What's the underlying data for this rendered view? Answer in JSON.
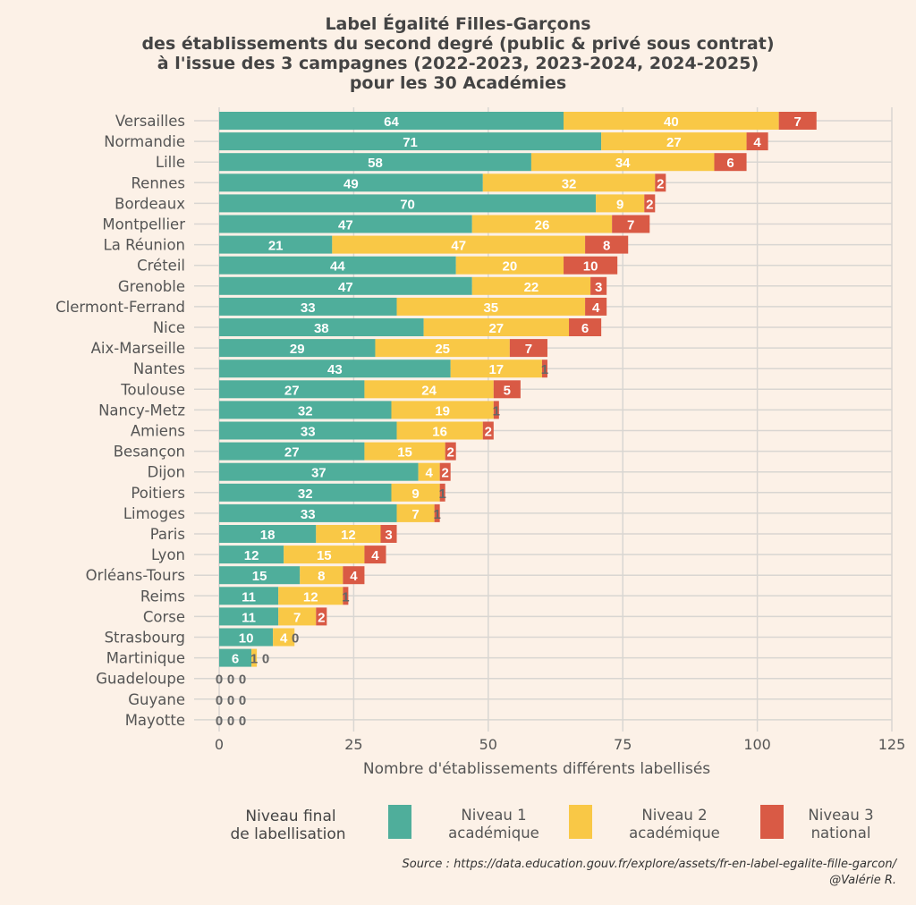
{
  "chart_data": {
    "type": "bar",
    "orientation": "horizontal-stacked",
    "title": [
      "Label Égalité Filles-Garçons",
      "des établissements du second degré (public & privé sous contrat)",
      "à l'issue des 3 campagnes (2022-2023, 2023-2024, 2024-2025)",
      "pour les 30 Académies"
    ],
    "xlabel": "Nombre d'établissements différents labellisés",
    "ylabel": "",
    "xlim": [
      0,
      125
    ],
    "xticks": [
      0,
      25,
      50,
      75,
      100,
      125
    ],
    "grid": true,
    "categories": [
      "Versailles",
      "Normandie",
      "Lille",
      "Rennes",
      "Bordeaux",
      "Montpellier",
      "La Réunion",
      "Créteil",
      "Grenoble",
      "Clermont-Ferrand",
      "Nice",
      "Aix-Marseille",
      "Nantes",
      "Toulouse",
      "Nancy-Metz",
      "Amiens",
      "Besançon",
      "Dijon",
      "Poitiers",
      "Limoges",
      "Paris",
      "Lyon",
      "Orléans-Tours",
      "Reims",
      "Corse",
      "Strasbourg",
      "Martinique",
      "Guadeloupe",
      "Guyane",
      "Mayotte"
    ],
    "series": [
      {
        "name": "Niveau 1 académique",
        "color": "#4fae9b",
        "values": [
          64,
          71,
          58,
          49,
          70,
          47,
          21,
          44,
          47,
          33,
          38,
          29,
          43,
          27,
          32,
          33,
          27,
          37,
          32,
          33,
          18,
          12,
          15,
          11,
          11,
          10,
          6,
          0,
          0,
          0
        ]
      },
      {
        "name": "Niveau 2 académique",
        "color": "#f9c846",
        "values": [
          40,
          27,
          34,
          32,
          9,
          26,
          47,
          20,
          22,
          35,
          27,
          25,
          17,
          24,
          19,
          16,
          15,
          4,
          9,
          7,
          12,
          15,
          8,
          12,
          7,
          4,
          1,
          0,
          0,
          0
        ]
      },
      {
        "name": "Niveau 3 national",
        "color": "#d95a45",
        "values": [
          7,
          4,
          6,
          2,
          2,
          7,
          8,
          10,
          3,
          4,
          6,
          7,
          1,
          5,
          1,
          2,
          2,
          2,
          1,
          1,
          3,
          4,
          4,
          1,
          2,
          0,
          0,
          0,
          0,
          0
        ]
      }
    ],
    "legend": {
      "title": "Niveau final\nde labellisation",
      "placement": "bottom"
    }
  },
  "source": "Source : https://data.education.gouv.fr/explore/assets/fr-en-label-egalite-fille-garcon/",
  "author": "@Valérie R."
}
